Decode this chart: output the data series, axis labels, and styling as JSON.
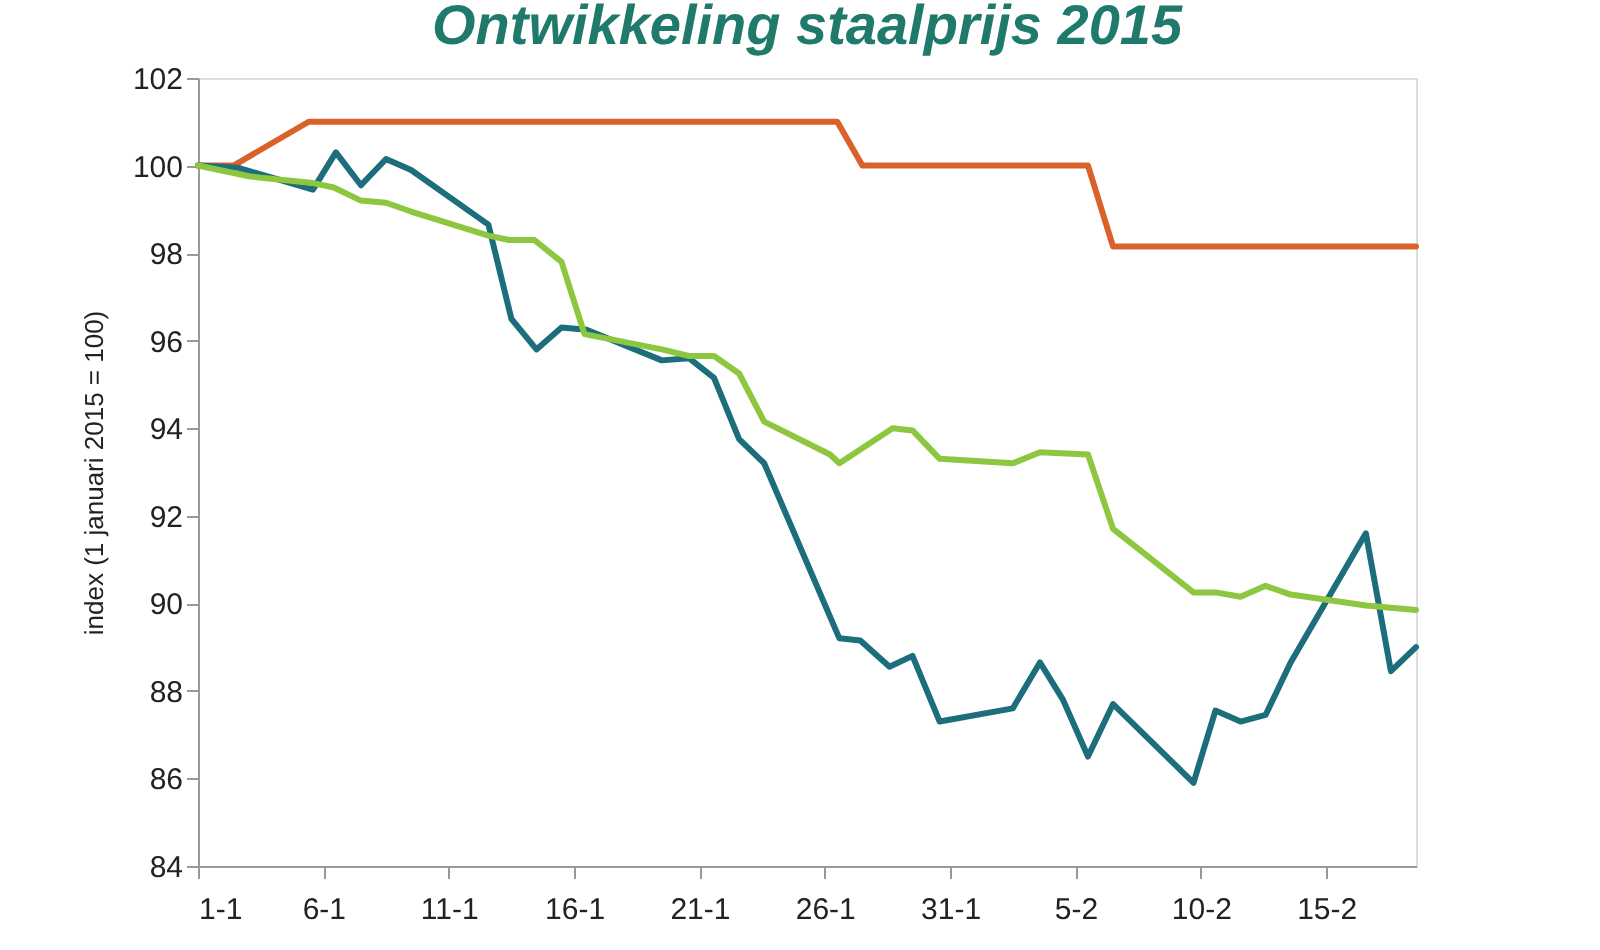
{
  "chart_data": {
    "type": "line",
    "title": "Ontwikkeling staalprijs 2015",
    "ylabel": "index (1 januari 2015 = 100)",
    "xlim": [
      "2015-01-01",
      "2015-02-18T14:00"
    ],
    "xticks": [
      {
        "value": "2015-01-01",
        "label": "1-1"
      },
      {
        "value": "2015-01-06",
        "label": "6-1"
      },
      {
        "value": "2015-01-11",
        "label": "11-1"
      },
      {
        "value": "2015-01-16",
        "label": "16-1"
      },
      {
        "value": "2015-01-21",
        "label": "21-1"
      },
      {
        "value": "2015-01-26",
        "label": "26-1"
      },
      {
        "value": "2015-01-31",
        "label": "31-1"
      },
      {
        "value": "2015-02-05",
        "label": "5-2"
      },
      {
        "value": "2015-02-10",
        "label": "10-2"
      },
      {
        "value": "2015-02-15",
        "label": "15-2"
      }
    ],
    "ylim": [
      84,
      102
    ],
    "yticks": [
      84,
      86,
      88,
      90,
      92,
      94,
      96,
      98,
      100,
      102
    ],
    "series": [
      {
        "color": "#d9622b",
        "x": [
          "2015-01-01",
          "2015-01-02T10:00",
          "2015-01-05T10:00",
          "2015-01-26T12:00",
          "2015-01-27T12:00",
          "2015-02-05T12:00",
          "2015-02-06T12:00",
          "2015-02-18T14:00"
        ],
        "values": [
          100,
          100,
          101,
          101,
          100,
          100,
          98.15,
          98.15
        ]
      },
      {
        "color": "#1d6e7c",
        "x": [
          "2015-01-01",
          "2015-01-02T14:00",
          "2015-01-05T14:00",
          "2015-01-06T12:00",
          "2015-01-07T12:00",
          "2015-01-08T12:00",
          "2015-01-09T12:00",
          "2015-01-12T14:00",
          "2015-01-13T12:00",
          "2015-01-14T12:00",
          "2015-01-15T12:00",
          "2015-01-16T12:00",
          "2015-01-19T12:00",
          "2015-01-20T14:00",
          "2015-01-21T14:00",
          "2015-01-22T14:00",
          "2015-01-23T14:00",
          "2015-01-26T14:00",
          "2015-01-27T10:00",
          "2015-01-28T14:00",
          "2015-01-29T12:00",
          "2015-01-30T14:00",
          "2015-02-02T12:00",
          "2015-02-03T14:00",
          "2015-02-04T12:00",
          "2015-02-05T12:00",
          "2015-02-06T12:00",
          "2015-02-09T17:00",
          "2015-02-10T14:00",
          "2015-02-11T14:00",
          "2015-02-12T14:00",
          "2015-02-13T14:00",
          "2015-02-16T14:00",
          "2015-02-17T14:00",
          "2015-02-18T14:00"
        ],
        "values": [
          100,
          99.95,
          99.45,
          100.3,
          99.55,
          100.15,
          99.9,
          98.65,
          96.5,
          95.8,
          96.3,
          96.25,
          95.55,
          95.6,
          95.15,
          93.75,
          93.2,
          89.2,
          89.15,
          88.55,
          88.8,
          87.3,
          87.6,
          88.65,
          87.8,
          86.5,
          87.7,
          85.9,
          87.55,
          87.3,
          87.45,
          88.65,
          91.6,
          88.45,
          89.0
        ]
      },
      {
        "color": "#8dc63f",
        "x": [
          "2015-01-01",
          "2015-01-03T02:00",
          "2015-01-05T14:00",
          "2015-01-06T10:00",
          "2015-01-07T12:00",
          "2015-01-08T12:00",
          "2015-01-09T12:00",
          "2015-01-12T14:00",
          "2015-01-13T10:00",
          "2015-01-14T10:00",
          "2015-01-15T12:00",
          "2015-01-16T10:00",
          "2015-01-19T12:00",
          "2015-01-20T14:00",
          "2015-01-21T14:00",
          "2015-01-22T14:00",
          "2015-01-23T14:00",
          "2015-01-26T05:00",
          "2015-01-26T14:00",
          "2015-01-28T17:00",
          "2015-01-29T12:00",
          "2015-01-30T14:00",
          "2015-02-02T12:00",
          "2015-02-03T14:00",
          "2015-02-05T12:00",
          "2015-02-06T12:00",
          "2015-02-09T17:00",
          "2015-02-10T14:00",
          "2015-02-11T14:00",
          "2015-02-12T14:00",
          "2015-02-13T14:00",
          "2015-02-16T14:00",
          "2015-02-18T14:00"
        ],
        "values": [
          100,
          99.75,
          99.6,
          99.5,
          99.2,
          99.15,
          98.95,
          98.4,
          98.3,
          98.3,
          97.8,
          96.15,
          95.8,
          95.65,
          95.65,
          95.25,
          94.15,
          93.4,
          93.2,
          94.0,
          93.95,
          93.3,
          93.2,
          93.45,
          93.4,
          91.7,
          90.25,
          90.25,
          90.15,
          90.4,
          90.2,
          89.95,
          89.85
        ]
      }
    ]
  }
}
